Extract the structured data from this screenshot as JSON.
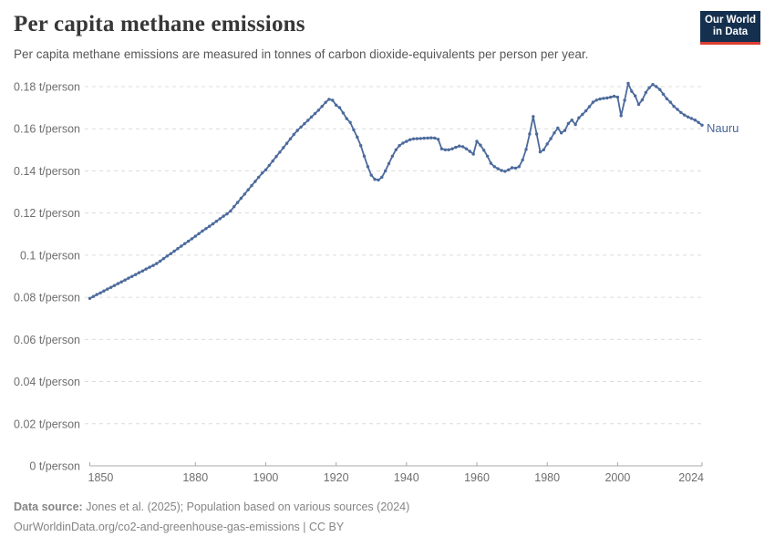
{
  "header": {
    "title": "Per capita methane emissions",
    "subtitle": "Per capita methane emissions are measured in tonnes of carbon dioxide-equivalents per person per year.",
    "logo": {
      "line1": "Our World",
      "line2": "in Data"
    }
  },
  "chart_data": {
    "type": "line",
    "title": "Per capita methane emissions",
    "ylabel": "t/person",
    "xlabel": "",
    "xlim": [
      1850,
      2024
    ],
    "ylim": [
      0,
      0.18
    ],
    "grid": "horizontal-dashed",
    "legend_position": "end-of-line-label",
    "x_ticks": [
      1850,
      1880,
      1900,
      1920,
      1940,
      1960,
      1980,
      2000,
      2024
    ],
    "y_ticks": [
      0,
      0.02,
      0.04,
      0.06,
      0.08,
      0.1,
      0.12,
      0.14,
      0.16,
      0.18
    ],
    "y_tick_labels": [
      "0 t/person",
      "0.02 t/person",
      "0.04 t/person",
      "0.06 t/person",
      "0.08 t/person",
      "0.1 t/person",
      "0.12 t/person",
      "0.14 t/person",
      "0.16 t/person",
      "0.18 t/person"
    ],
    "series": [
      {
        "name": "Nauru",
        "x_start": 1850,
        "x_step": 1,
        "values": [
          0.0795,
          0.0804,
          0.0813,
          0.0821,
          0.083,
          0.0839,
          0.0847,
          0.0856,
          0.0865,
          0.0873,
          0.0882,
          0.0891,
          0.0899,
          0.0908,
          0.0917,
          0.0925,
          0.0934,
          0.0943,
          0.0951,
          0.096,
          0.0972,
          0.0984,
          0.0996,
          0.1007,
          0.1019,
          0.1031,
          0.1043,
          0.1055,
          0.1066,
          0.1078,
          0.109,
          0.1102,
          0.1114,
          0.1126,
          0.1137,
          0.1149,
          0.1161,
          0.1173,
          0.1185,
          0.1196,
          0.121,
          0.123,
          0.125,
          0.127,
          0.129,
          0.131,
          0.133,
          0.135,
          0.137,
          0.139,
          0.1405,
          0.1426,
          0.1447,
          0.1468,
          0.1489,
          0.151,
          0.1531,
          0.1552,
          0.1573,
          0.1592,
          0.1608,
          0.1624,
          0.164,
          0.1656,
          0.1672,
          0.1688,
          0.1706,
          0.1725,
          0.174,
          0.1735,
          0.1712,
          0.17,
          0.1675,
          0.1648,
          0.163,
          0.1595,
          0.156,
          0.152,
          0.147,
          0.142,
          0.138,
          0.136,
          0.1357,
          0.137,
          0.14,
          0.1435,
          0.147,
          0.15,
          0.152,
          0.1532,
          0.154,
          0.1548,
          0.1552,
          0.1553,
          0.1554,
          0.1555,
          0.1556,
          0.1557,
          0.1556,
          0.155,
          0.1505,
          0.15,
          0.15,
          0.1505,
          0.1512,
          0.1518,
          0.1515,
          0.1505,
          0.1493,
          0.148,
          0.154,
          0.1522,
          0.1498,
          0.147,
          0.1436,
          0.142,
          0.141,
          0.1402,
          0.1398,
          0.1405,
          0.1415,
          0.1413,
          0.142,
          0.1452,
          0.1502,
          0.1575,
          0.1658,
          0.1575,
          0.149,
          0.15,
          0.1528,
          0.1553,
          0.158,
          0.1603,
          0.158,
          0.1592,
          0.1625,
          0.1641,
          0.162,
          0.1652,
          0.1668,
          0.1685,
          0.1705,
          0.1726,
          0.1736,
          0.1741,
          0.1744,
          0.1746,
          0.175,
          0.1754,
          0.175,
          0.1662,
          0.1735,
          0.1815,
          0.1778,
          0.1756,
          0.1715,
          0.1737,
          0.1772,
          0.1795,
          0.181,
          0.18,
          0.1786,
          0.1764,
          0.1742,
          0.1726,
          0.1706,
          0.1692,
          0.1677,
          0.1665,
          0.1656,
          0.1649,
          0.1641,
          0.163,
          0.1617
        ]
      }
    ],
    "end_label": "Nauru"
  },
  "footer": {
    "source_label": "Data source:",
    "source_text": " Jones et al. (2025); Population based on various sources (2024)",
    "url": "OurWorldinData.org/co2-and-greenhouse-gas-emissions",
    "license": " | CC BY"
  },
  "colors": {
    "line": "#4c6a9c",
    "entity_label": "#48659a",
    "grid": "#dcdcdc",
    "axis": "#a8a8a8",
    "tick_text": "#6e6e6e",
    "title": "#373737",
    "subtitle": "#565656",
    "footer": "#858585",
    "logo_bg": "#14304e",
    "logo_red": "#dc3e31"
  }
}
